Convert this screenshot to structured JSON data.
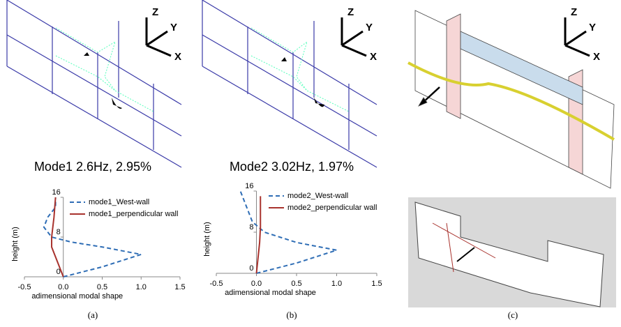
{
  "chart_data": [
    {
      "type": "line",
      "x_label": "adimensional modal shape",
      "y_label": "height (m)",
      "xlim": [
        -0.5,
        1.5
      ],
      "xticks": [
        -0.5,
        {
          "value": 0,
          "label": "0.0"
        },
        0.5,
        {
          "value": 1,
          "label": "1.0"
        },
        1.5
      ],
      "ylim": [
        0,
        16
      ],
      "yticks": [
        0,
        8,
        16
      ],
      "series": [
        {
          "name": "mode1_West-wall",
          "color": "#2e6db5",
          "style": "dashed",
          "x": [
            0,
            0.5,
            1.0,
            0.5,
            0.1,
            -0.15,
            -0.25,
            -0.2,
            -0.1,
            -0.1
          ],
          "y": [
            0,
            2,
            4.5,
            6,
            7,
            8,
            10,
            12,
            14,
            16
          ]
        },
        {
          "name": "mode1_perpendicular wall",
          "color": "#a8322d",
          "style": "solid",
          "x": [
            0,
            -0.05,
            -0.1,
            -0.15,
            -0.15,
            -0.12,
            -0.1
          ],
          "y": [
            0,
            2,
            4,
            6,
            8,
            12,
            16
          ]
        }
      ]
    },
    {
      "type": "line",
      "x_label": "adimensional modal shape",
      "y_label": "height (m)",
      "xlim": [
        -0.5,
        1.5
      ],
      "xticks": [
        -0.5,
        {
          "value": 0,
          "label": "0.0"
        },
        0.5,
        {
          "value": 1,
          "label": "1.0"
        },
        1.5
      ],
      "ylim": [
        0,
        16
      ],
      "yticks": [
        0,
        8,
        16
      ],
      "series": [
        {
          "name": "mode2_West-wall",
          "color": "#2e6db5",
          "style": "dashed",
          "x": [
            0,
            0.5,
            1.0,
            0.5,
            0.1,
            -0.05,
            -0.15,
            -0.2
          ],
          "y": [
            0,
            2,
            4.5,
            6,
            8,
            10,
            14,
            16
          ]
        },
        {
          "name": "mode2_perpendicular wall",
          "color": "#a8322d",
          "style": "solid",
          "x": [
            0,
            0.02,
            0.04,
            0.05,
            0.05,
            0.05
          ],
          "y": [
            0,
            3,
            6,
            9,
            12,
            15
          ]
        }
      ]
    }
  ],
  "figure": {
    "mode_labels": [
      "Mode1 2.6Hz, 2.95%",
      "Mode2 3.02Hz, 1.97%"
    ],
    "captions": [
      "(a)",
      "(b)",
      "(c)"
    ],
    "axis_letters": [
      "Z",
      "Y",
      "X"
    ]
  }
}
